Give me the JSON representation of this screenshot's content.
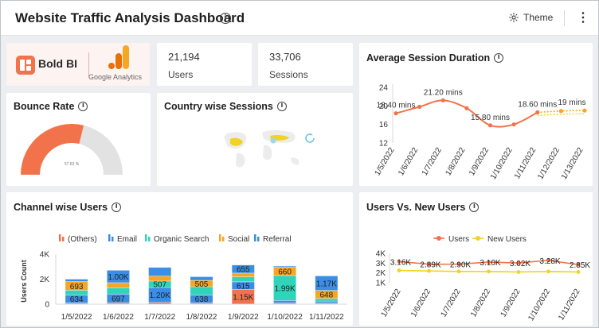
{
  "header": {
    "title": "Website Traffic Analysis Dashboard",
    "info_glyph": "i",
    "theme_label": "Theme",
    "more_glyph": "⋮"
  },
  "logos": {
    "boldbi": "Bold BI",
    "ga": "Google Analytics"
  },
  "kpis": [
    {
      "value": "21,194",
      "label": "Users"
    },
    {
      "value": "33,706",
      "label": "Sessions"
    }
  ],
  "colors": {
    "orange": "#f2734b",
    "blue": "#3a8ee6",
    "teal": "#2fd4b9",
    "amber": "#f5a623",
    "yellow": "#f0d324",
    "gray": "#e2e2e2"
  },
  "cards": {
    "bounce": {
      "title": "Bounce Rate",
      "value_label": "57.63 %"
    },
    "country": {
      "title": "Country wise Sessions"
    },
    "session": {
      "title": "Average Session Duration"
    },
    "channel": {
      "title": "Channel wise Users"
    },
    "users_new": {
      "title": "Users Vs. New Users"
    }
  },
  "chart_data": [
    {
      "id": "bounce",
      "type": "gauge",
      "title": "Bounce Rate",
      "value": 57.63,
      "label": "57.63 %",
      "range": [
        0,
        100
      ]
    },
    {
      "id": "session",
      "type": "line",
      "title": "Average Session Duration",
      "categories": [
        "1/5/2022",
        "1/6/2022",
        "1/7/2022",
        "1/8/2022",
        "1/9/2022",
        "1/10/2022",
        "1/11/2022",
        "1/12/2022",
        "1/13/2022"
      ],
      "values": [
        18.4,
        19.8,
        21.2,
        19.5,
        15.8,
        16.0,
        18.6,
        18.9,
        19.0
      ],
      "data_labels": [
        "18.40 mins",
        "",
        "21.20 mins",
        "",
        "15.80 mins",
        "",
        "18.60 mins",
        "",
        "19 mins"
      ],
      "yticks": [
        "24",
        "20",
        "16",
        "12"
      ],
      "ylim": [
        12,
        24
      ]
    },
    {
      "id": "channel",
      "type": "bar",
      "stacked": true,
      "title": "Channel wise Users",
      "ylabel": "Users Count",
      "yticks": [
        "4K",
        "2K",
        "0"
      ],
      "ylim": [
        0,
        4000
      ],
      "categories": [
        "1/5/2022",
        "1/6/2022",
        "1/7/2022",
        "1/8/2022",
        "1/9/2022",
        "1/10/2022",
        "1/11/2022"
      ],
      "series": [
        {
          "name": "(Others)",
          "values": [
            80,
            100,
            120,
            90,
            1150,
            80,
            80
          ],
          "labels": [
            "",
            "",
            "",
            "",
            "1.15K",
            "",
            ""
          ]
        },
        {
          "name": "Email",
          "values": [
            634,
            697,
            1200,
            638,
            615,
            200,
            150
          ],
          "labels": [
            "634",
            "697",
            "1.20K",
            "638",
            "615",
            "",
            ""
          ]
        },
        {
          "name": "Organic Search",
          "values": [
            380,
            500,
            507,
            650,
            400,
            1990,
            200
          ],
          "labels": [
            "",
            "",
            "507",
            "",
            "",
            "1.99K",
            ""
          ]
        },
        {
          "name": "Social",
          "values": [
            693,
            400,
            400,
            505,
            300,
            660,
            648
          ],
          "labels": [
            "693",
            "",
            "",
            "505",
            "",
            "660",
            "648"
          ]
        },
        {
          "name": "Referral",
          "values": [
            200,
            1000,
            700,
            300,
            655,
            100,
            1170
          ],
          "labels": [
            "",
            "1.00K",
            "",
            "",
            "655",
            "",
            "1.17K"
          ]
        }
      ]
    },
    {
      "id": "users_new",
      "type": "line",
      "title": "Users Vs. New Users",
      "yticks": [
        "4K",
        "3K",
        "2K",
        "1K"
      ],
      "ylim": [
        1000,
        4000
      ],
      "categories": [
        "1/5/2022",
        "1/6/2022",
        "1/7/2022",
        "1/8/2022",
        "1/9/2022",
        "1/10/2022",
        "1/11/2022"
      ],
      "series": [
        {
          "name": "Users",
          "values": [
            3160,
            2890,
            2900,
            3100,
            3020,
            3280,
            2850
          ],
          "labels": [
            "3.16K",
            "2.89K",
            "2.90K",
            "3.10K",
            "3.02K",
            "3.28K",
            "2.85K"
          ]
        },
        {
          "name": "New Users",
          "values": [
            2250,
            2200,
            2150,
            2150,
            2100,
            2150,
            2100
          ],
          "labels": [
            "",
            "",
            "",
            "",
            "",
            "",
            ""
          ]
        }
      ]
    }
  ]
}
